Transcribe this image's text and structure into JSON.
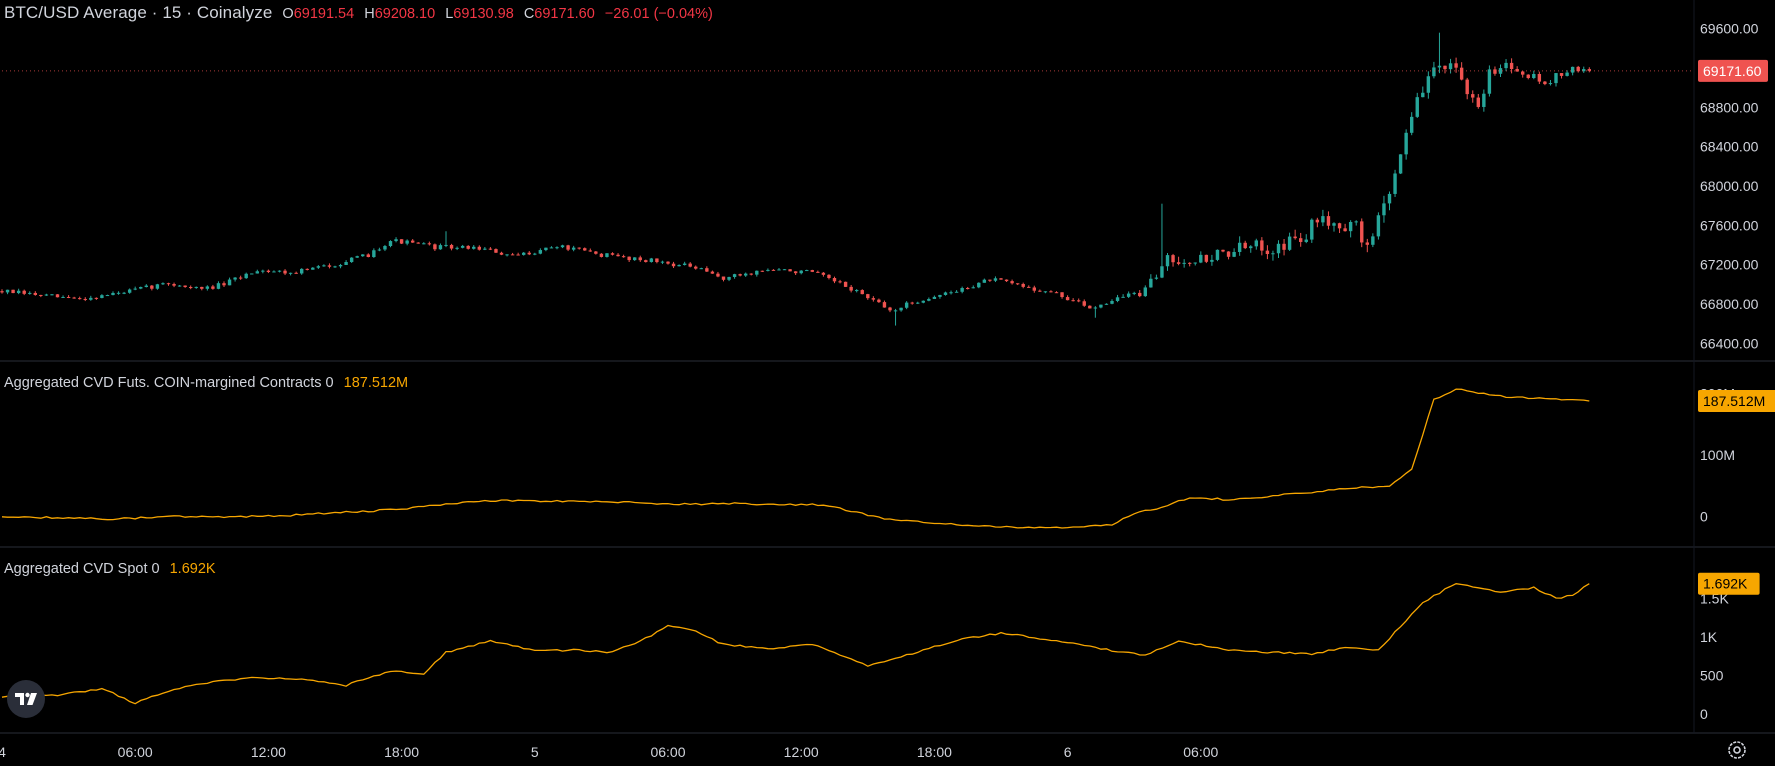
{
  "colors": {
    "background": "#000000",
    "up": "#26a69a",
    "down": "#ef5350",
    "cvd_line": "#f7a600",
    "axis_text": "#d1d4dc",
    "separator": "#2a2e39",
    "last_price_bg": "#ef5350",
    "indicator_badge_bg": "#f7a600"
  },
  "legend": {
    "title": "BTC/USD Average · 15 · Coinalyze",
    "open_key": "O",
    "open": "69191.54",
    "high_key": "H",
    "high": "69208.10",
    "low_key": "L",
    "low": "69130.98",
    "close_key": "C",
    "close": "69171.60",
    "change": "−26.01 (−0.04%)"
  },
  "cvd_futures_legend": {
    "name": "Aggregated CVD Futs. COIN-margined Contracts 0",
    "value": "187.512M"
  },
  "cvd_spot_legend": {
    "name": "Aggregated CVD Spot 0",
    "value": "1.692K"
  },
  "icons": {
    "logo": "tradingview-logo-icon",
    "settings": "gear-icon"
  },
  "chart_data": [
    {
      "type": "candlestick",
      "title": "BTC/USD Average · 15 · Coinalyze",
      "ylim": [
        66250,
        69750
      ],
      "y_ticks": [
        {
          "value": 66400,
          "label": "66400.00"
        },
        {
          "value": 66800,
          "label": "66800.00"
        },
        {
          "value": 67200,
          "label": "67200.00"
        },
        {
          "value": 67600,
          "label": "67600.00"
        },
        {
          "value": 68000,
          "label": "68000.00"
        },
        {
          "value": 68400,
          "label": "68400.00"
        },
        {
          "value": 68800,
          "label": "68800.00"
        },
        {
          "value": 69200,
          "label": "69200.00"
        },
        {
          "value": 69600,
          "label": "69600.00"
        }
      ],
      "last_price_label": "69171.60",
      "last_price": 69171.6,
      "close_anchors": [
        [
          0,
          66930
        ],
        [
          8,
          66880
        ],
        [
          14,
          66850
        ],
        [
          22,
          66920
        ],
        [
          30,
          67010
        ],
        [
          36,
          66950
        ],
        [
          40,
          67000
        ],
        [
          46,
          67150
        ],
        [
          52,
          67120
        ],
        [
          58,
          67180
        ],
        [
          62,
          67230
        ],
        [
          66,
          67300
        ],
        [
          70,
          67450
        ],
        [
          78,
          67380
        ],
        [
          86,
          67370
        ],
        [
          92,
          67280
        ],
        [
          100,
          67390
        ],
        [
          108,
          67300
        ],
        [
          116,
          67250
        ],
        [
          124,
          67180
        ],
        [
          130,
          67060
        ],
        [
          138,
          67150
        ],
        [
          146,
          67120
        ],
        [
          154,
          66930
        ],
        [
          160,
          66730
        ],
        [
          166,
          66850
        ],
        [
          172,
          66930
        ],
        [
          178,
          67050
        ],
        [
          184,
          66980
        ],
        [
          190,
          66900
        ],
        [
          196,
          66760
        ],
        [
          202,
          66880
        ],
        [
          206,
          66920
        ],
        [
          210,
          67280
        ],
        [
          216,
          67250
        ],
        [
          222,
          67350
        ],
        [
          228,
          67380
        ],
        [
          234,
          67450
        ],
        [
          238,
          67700
        ],
        [
          244,
          67560
        ],
        [
          246,
          67380
        ],
        [
          250,
          67950
        ],
        [
          252,
          68350
        ],
        [
          254,
          68750
        ],
        [
          256,
          68950
        ],
        [
          258,
          69200
        ],
        [
          260,
          69260
        ],
        [
          262,
          69150
        ],
        [
          264,
          68900
        ],
        [
          266,
          68800
        ],
        [
          268,
          69150
        ],
        [
          270,
          69250
        ],
        [
          274,
          69180
        ],
        [
          278,
          69050
        ],
        [
          282,
          69180
        ],
        [
          286,
          69171.6
        ]
      ],
      "spikes": [
        {
          "index": 80,
          "high": 67540
        },
        {
          "index": 209,
          "high": 67820
        },
        {
          "index": 259,
          "high": 69560
        },
        {
          "index": 161,
          "low": 66580
        },
        {
          "index": 197,
          "low": 66660
        }
      ],
      "volatility": [
        [
          0,
          30
        ],
        [
          200,
          30
        ],
        [
          209,
          80
        ],
        [
          250,
          120
        ],
        [
          260,
          90
        ],
        [
          286,
          40
        ]
      ]
    },
    {
      "type": "line",
      "name": "Aggregated CVD Futs. COIN-margined Contracts 0",
      "ylim": [
        -25,
        215
      ],
      "y_ticks": [
        {
          "value": 0,
          "label": "0"
        },
        {
          "value": 100,
          "label": "100M"
        },
        {
          "value": 200,
          "label": "200M"
        }
      ],
      "last_value_label": "187.512M",
      "last_value": 187.512,
      "points": [
        [
          0,
          0
        ],
        [
          10,
          -2
        ],
        [
          20,
          -4
        ],
        [
          30,
          0
        ],
        [
          40,
          0
        ],
        [
          50,
          1
        ],
        [
          56,
          4
        ],
        [
          64,
          8
        ],
        [
          72,
          12
        ],
        [
          80,
          20
        ],
        [
          88,
          26
        ],
        [
          96,
          25
        ],
        [
          108,
          25
        ],
        [
          116,
          22
        ],
        [
          124,
          20
        ],
        [
          132,
          21
        ],
        [
          140,
          20
        ],
        [
          148,
          19
        ],
        [
          156,
          3
        ],
        [
          160,
          -5
        ],
        [
          168,
          -10
        ],
        [
          176,
          -16
        ],
        [
          184,
          -18
        ],
        [
          192,
          -18
        ],
        [
          200,
          -14
        ],
        [
          204,
          5
        ],
        [
          208,
          13
        ],
        [
          214,
          31
        ],
        [
          222,
          27
        ],
        [
          228,
          33
        ],
        [
          234,
          38
        ],
        [
          242,
          45
        ],
        [
          250,
          50
        ],
        [
          254,
          78
        ],
        [
          258,
          190
        ],
        [
          262,
          207
        ],
        [
          270,
          195
        ],
        [
          280,
          190
        ],
        [
          286,
          187.512
        ]
      ]
    },
    {
      "type": "line",
      "name": "Aggregated CVD Spot 0",
      "ylim": [
        -80,
        1870
      ],
      "y_ticks": [
        {
          "value": 0,
          "label": "0"
        },
        {
          "value": 500,
          "label": "500"
        },
        {
          "value": 1000,
          "label": "1K"
        },
        {
          "value": 1500,
          "label": "1.5K"
        }
      ],
      "last_value_label": "1.692K",
      "last_value": 1692,
      "points": [
        [
          0,
          220
        ],
        [
          10,
          240
        ],
        [
          18,
          330
        ],
        [
          24,
          140
        ],
        [
          30,
          300
        ],
        [
          36,
          400
        ],
        [
          46,
          470
        ],
        [
          54,
          450
        ],
        [
          62,
          370
        ],
        [
          70,
          560
        ],
        [
          76,
          520
        ],
        [
          80,
          800
        ],
        [
          88,
          950
        ],
        [
          96,
          820
        ],
        [
          104,
          830
        ],
        [
          110,
          800
        ],
        [
          116,
          980
        ],
        [
          120,
          1150
        ],
        [
          124,
          1100
        ],
        [
          130,
          900
        ],
        [
          138,
          850
        ],
        [
          146,
          900
        ],
        [
          156,
          620
        ],
        [
          164,
          780
        ],
        [
          172,
          960
        ],
        [
          180,
          1050
        ],
        [
          188,
          970
        ],
        [
          194,
          900
        ],
        [
          200,
          820
        ],
        [
          206,
          760
        ],
        [
          212,
          950
        ],
        [
          220,
          840
        ],
        [
          228,
          800
        ],
        [
          236,
          780
        ],
        [
          242,
          860
        ],
        [
          248,
          830
        ],
        [
          256,
          1450
        ],
        [
          262,
          1700
        ],
        [
          270,
          1580
        ],
        [
          276,
          1640
        ],
        [
          280,
          1500
        ],
        [
          283,
          1550
        ],
        [
          286,
          1692
        ]
      ]
    }
  ],
  "x_axis": {
    "bar_count": 287,
    "labels": [
      {
        "index": 0,
        "label": "4"
      },
      {
        "index": 24,
        "label": "06:00"
      },
      {
        "index": 48,
        "label": "12:00"
      },
      {
        "index": 72,
        "label": "18:00"
      },
      {
        "index": 96,
        "label": "5"
      },
      {
        "index": 120,
        "label": "06:00"
      },
      {
        "index": 144,
        "label": "12:00"
      },
      {
        "index": 168,
        "label": "18:00"
      },
      {
        "index": 192,
        "label": "6"
      },
      {
        "index": 216,
        "label": "06:00"
      }
    ]
  }
}
